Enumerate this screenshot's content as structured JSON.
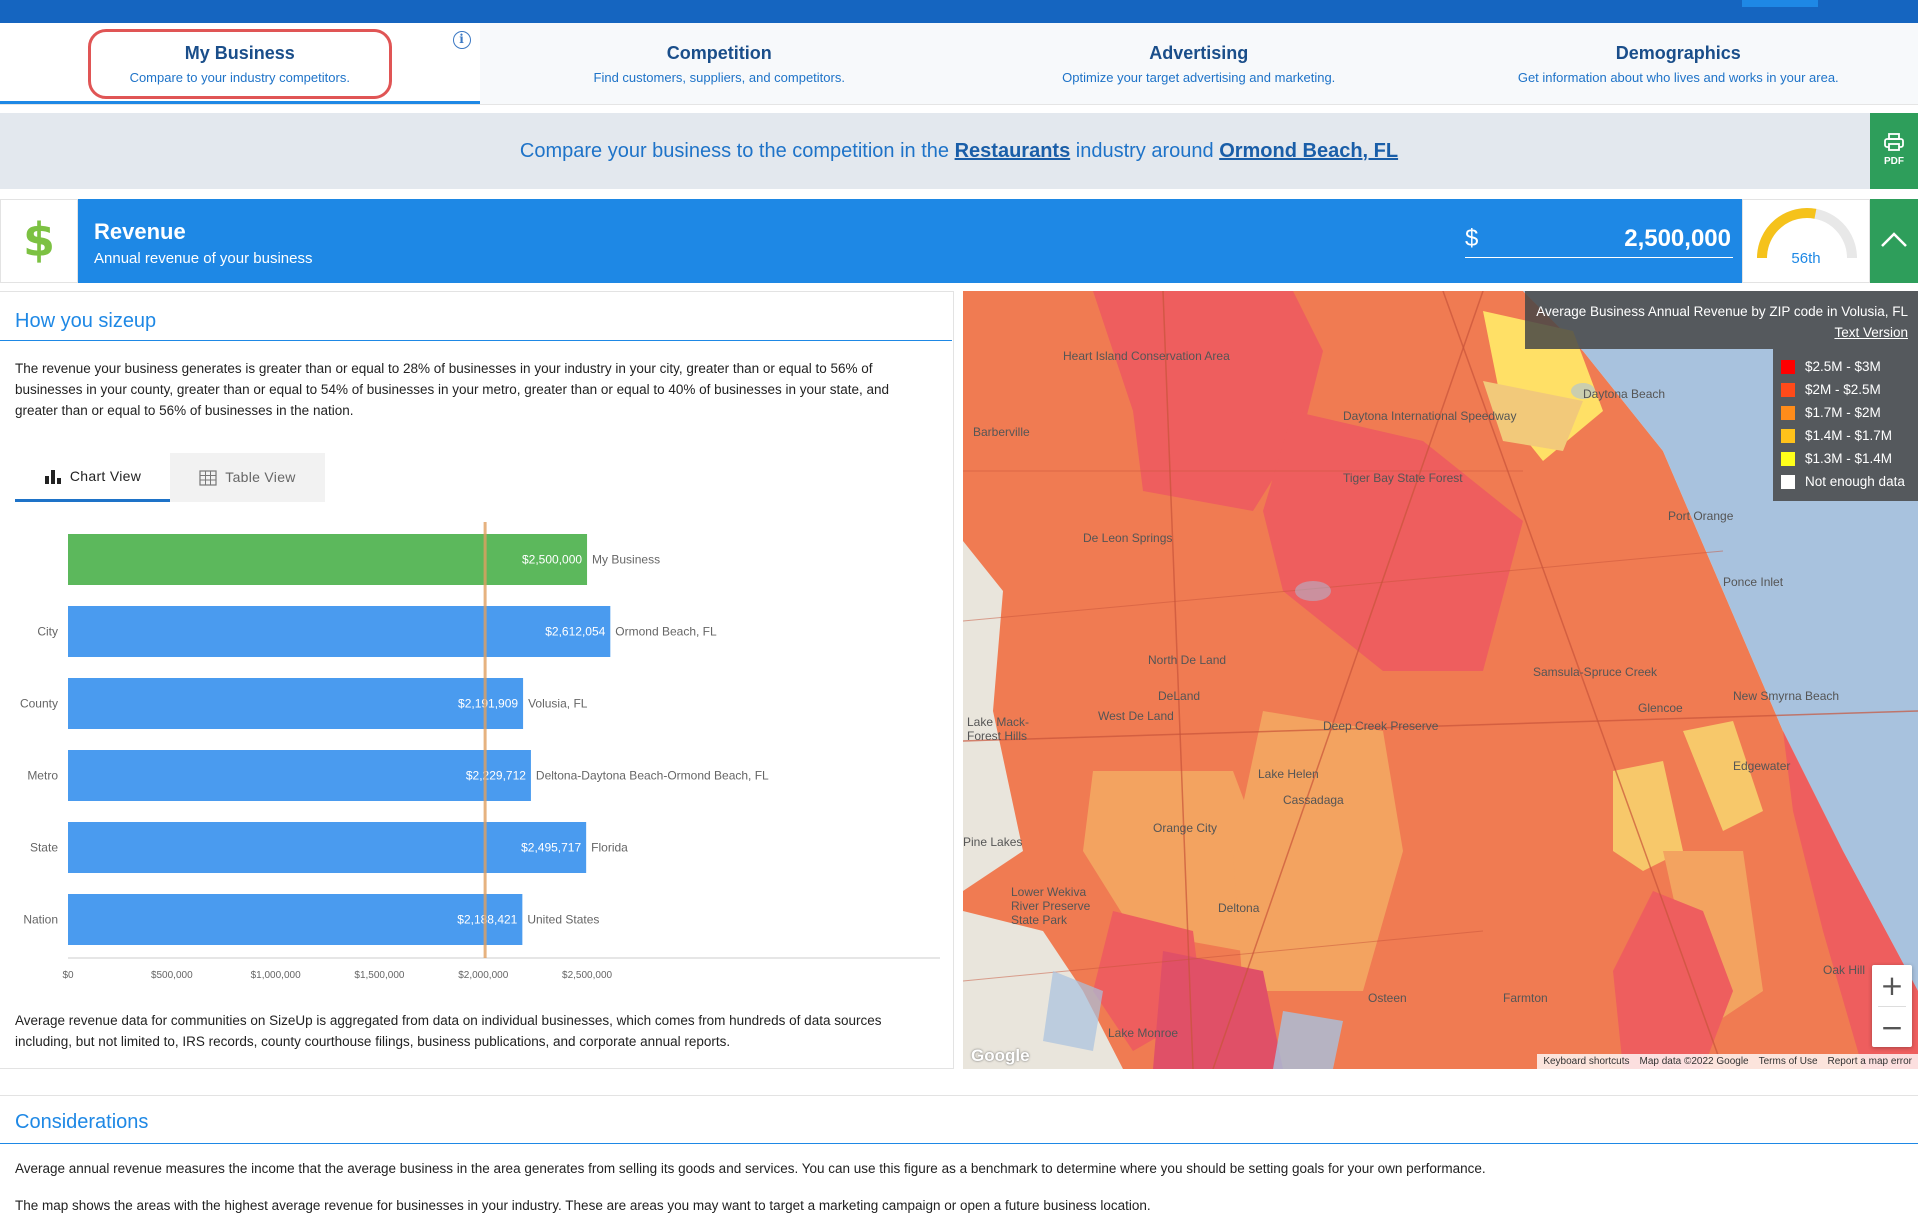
{
  "tabs": [
    {
      "title": "My Business",
      "subtitle": "Compare to your industry competitors."
    },
    {
      "title": "Competition",
      "subtitle": "Find customers, suppliers, and competitors."
    },
    {
      "title": "Advertising",
      "subtitle": "Optimize your target advertising and marketing."
    },
    {
      "title": "Demographics",
      "subtitle": "Get information about who lives and works in your area."
    }
  ],
  "banner": {
    "prefix": "Compare your business to the competition in the ",
    "industry": "Restaurants",
    "middle": " industry around ",
    "location": "Ormond Beach, FL"
  },
  "pdf_label": "PDF",
  "revenue": {
    "icon": "$",
    "title": "Revenue",
    "subtitle": "Annual revenue of your business",
    "currency": "$",
    "value": "2,500,000",
    "percentile_label": "56th",
    "percentile": 56
  },
  "sizeup": {
    "title": "How you sizeup",
    "text": "The revenue your business generates is greater than or equal to 28% of businesses in your industry in your city, greater than or equal to 56% of businesses in your county, greater than or equal to 54% of businesses in your metro, greater than or equal to 40% of businesses in your state, and greater than or equal to 56% of businesses in the nation.",
    "chart_view": "Chart View",
    "table_view": "Table View",
    "footnote": "Average revenue data for communities on SizeUp is aggregated from data on individual businesses, which comes from hundreds of data sources including, but not limited to, IRS records, county courthouse filings, business publications, and corporate annual reports."
  },
  "chart_data": {
    "type": "bar",
    "orientation": "horizontal",
    "categories": [
      "",
      "City",
      "County",
      "Metro",
      "State",
      "Nation"
    ],
    "series_labels": [
      "My Business",
      "Ormond Beach, FL",
      "Volusia, FL",
      "Deltona-Daytona Beach-Ormond Beach, FL",
      "Florida",
      "United States"
    ],
    "values": [
      2500000,
      2612054,
      2191909,
      2229712,
      2495717,
      2188421
    ],
    "value_labels": [
      "$2,500,000",
      "$2,612,054",
      "$2,191,909",
      "$2,229,712",
      "$2,495,717",
      "$2,188,421"
    ],
    "colors": [
      "#5cb85c",
      "#4a9bef",
      "#4a9bef",
      "#4a9bef",
      "#4a9bef",
      "#4a9bef"
    ],
    "reference_line": 2009000,
    "reference_color": "#e0a060",
    "xlim": [
      0,
      4200000
    ],
    "x_ticks": [
      0,
      500000,
      1000000,
      1500000,
      2000000,
      2500000
    ],
    "x_tick_labels": [
      "$0",
      "$500,000",
      "$1,000,000",
      "$1,500,000",
      "$2,000,000",
      "$2,500,000"
    ]
  },
  "map": {
    "legend_title": "Average Business Annual Revenue by ZIP code in Volusia, FL",
    "text_version": "Text Version",
    "legend": [
      {
        "label": "$2.5M - $3M",
        "color": "#ff0000"
      },
      {
        "label": "$2M - $2.5M",
        "color": "#ff4a1a"
      },
      {
        "label": "$1.7M - $2M",
        "color": "#ff8c1a"
      },
      {
        "label": "$1.4M - $1.7M",
        "color": "#ffc21a"
      },
      {
        "label": "$1.3M - $1.4M",
        "color": "#ffff1a"
      },
      {
        "label": "Not enough data",
        "color": "#ffffff"
      }
    ],
    "zoom_in": "+",
    "zoom_out": "−",
    "google": "Google",
    "attribution": [
      "Keyboard shortcuts",
      "Map data ©2022 Google",
      "Terms of Use",
      "Report a map error"
    ],
    "places": [
      "Heart Island Conservation Area",
      "Daytona International Speedway",
      "Daytona Beach",
      "Tiger Bay State Forest",
      "Port Orange",
      "Ponce Inlet",
      "De Leon Springs",
      "North De Land",
      "DeLand",
      "Samsula-Spruce Creek",
      "New Smyrna Beach",
      "Deep Creek Preserve",
      "Orange City",
      "Lake Helen",
      "Deltona",
      "Edgewater",
      "Osteen",
      "Farmton",
      "Lake Monroe",
      "Oak Hill",
      "Barberville",
      "Pine Lakes",
      "Glencoe",
      "Lower Wekiva River Preserve State Park",
      "Lake Mack-Forest Hills",
      "West De Land",
      "Cassadaga"
    ]
  },
  "considerations": {
    "title": "Considerations",
    "p1": "Average annual revenue measures the income that the average business in the area generates from selling its goods and services. You can use this figure as a benchmark to determine where you should be setting goals for your own performance.",
    "p2": "The map shows the areas with the highest average revenue for businesses in your industry. These are areas you may want to target a marketing campaign or open a future business location."
  }
}
